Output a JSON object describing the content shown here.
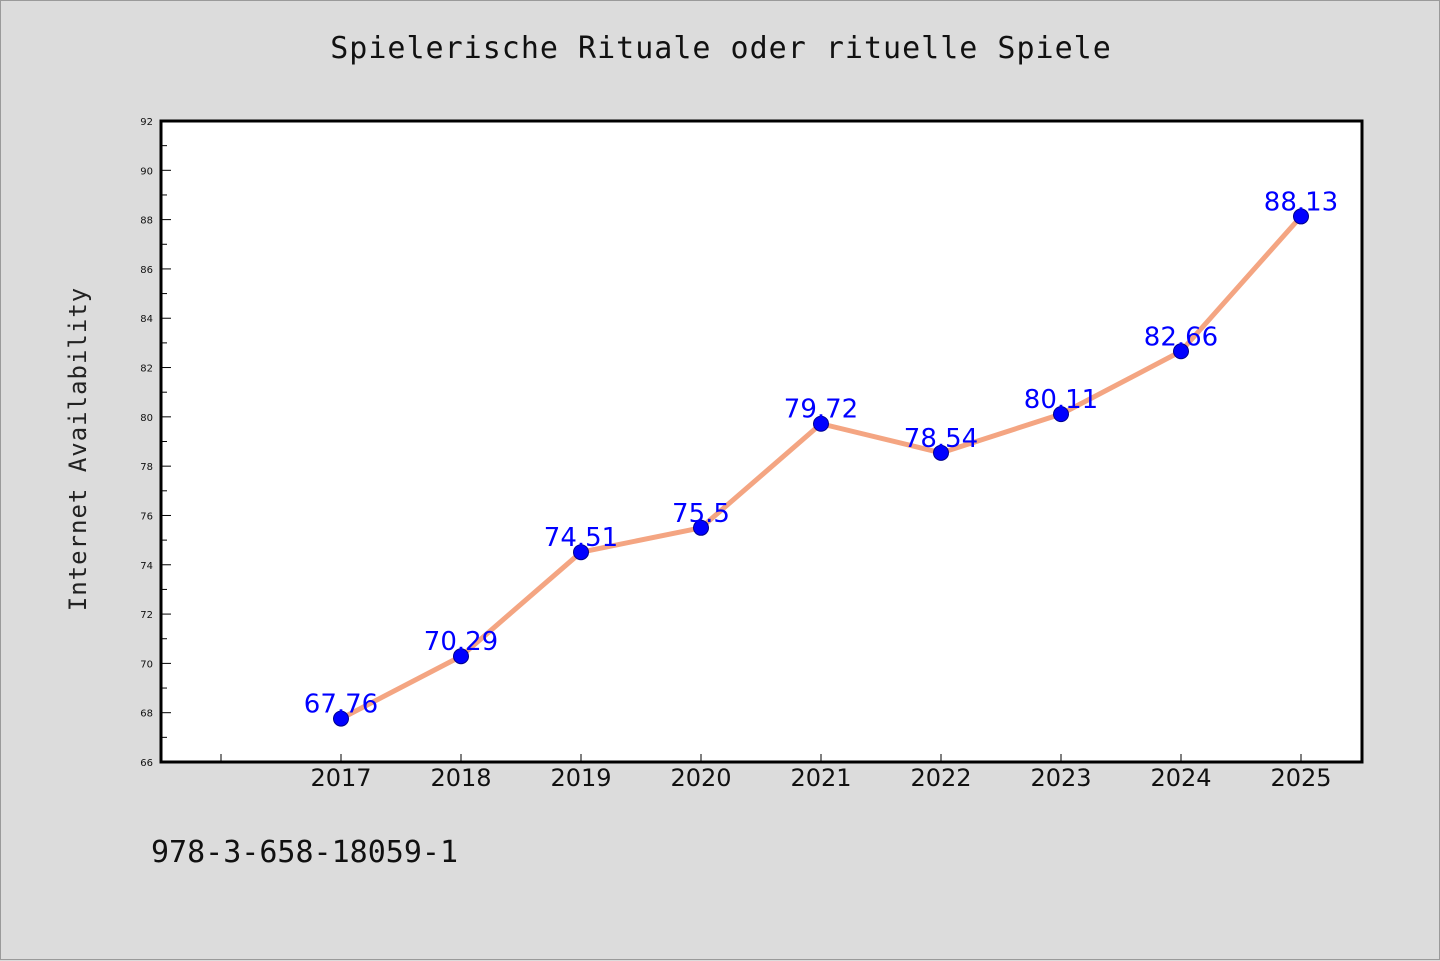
{
  "title": "Spielerische Rituale oder rituelle Spiele",
  "footnote": "978-3-658-18059-1",
  "colors": {
    "background": "#dcdcdc",
    "plot_background": "#ffffff",
    "line": "#f4a582",
    "marker": "#0000ff",
    "label": "#0000ff"
  },
  "chart_data": {
    "type": "line",
    "title": "Spielerische Rituale oder rituelle Spiele",
    "xlabel": "",
    "ylabel": "Internet Availability",
    "x": [
      "2017",
      "2018",
      "2019",
      "2020",
      "2021",
      "2022",
      "2023",
      "2024",
      "2025"
    ],
    "series": [
      {
        "values": [
          67.76,
          70.29,
          74.51,
          75.5,
          79.72,
          78.54,
          80.11,
          82.66,
          88.13
        ],
        "labels": [
          "67.76",
          "70.29",
          "74.51",
          "75.5",
          "79.72",
          "78.54",
          "80.11",
          "82.66",
          "88.13"
        ]
      }
    ],
    "ylim": [
      66,
      92
    ],
    "yticks": [
      "66",
      "68",
      "70",
      "72",
      "74",
      "76",
      "78",
      "80",
      "82",
      "84",
      "86",
      "88",
      "90",
      "92"
    ],
    "grid": false,
    "legend": "none"
  }
}
